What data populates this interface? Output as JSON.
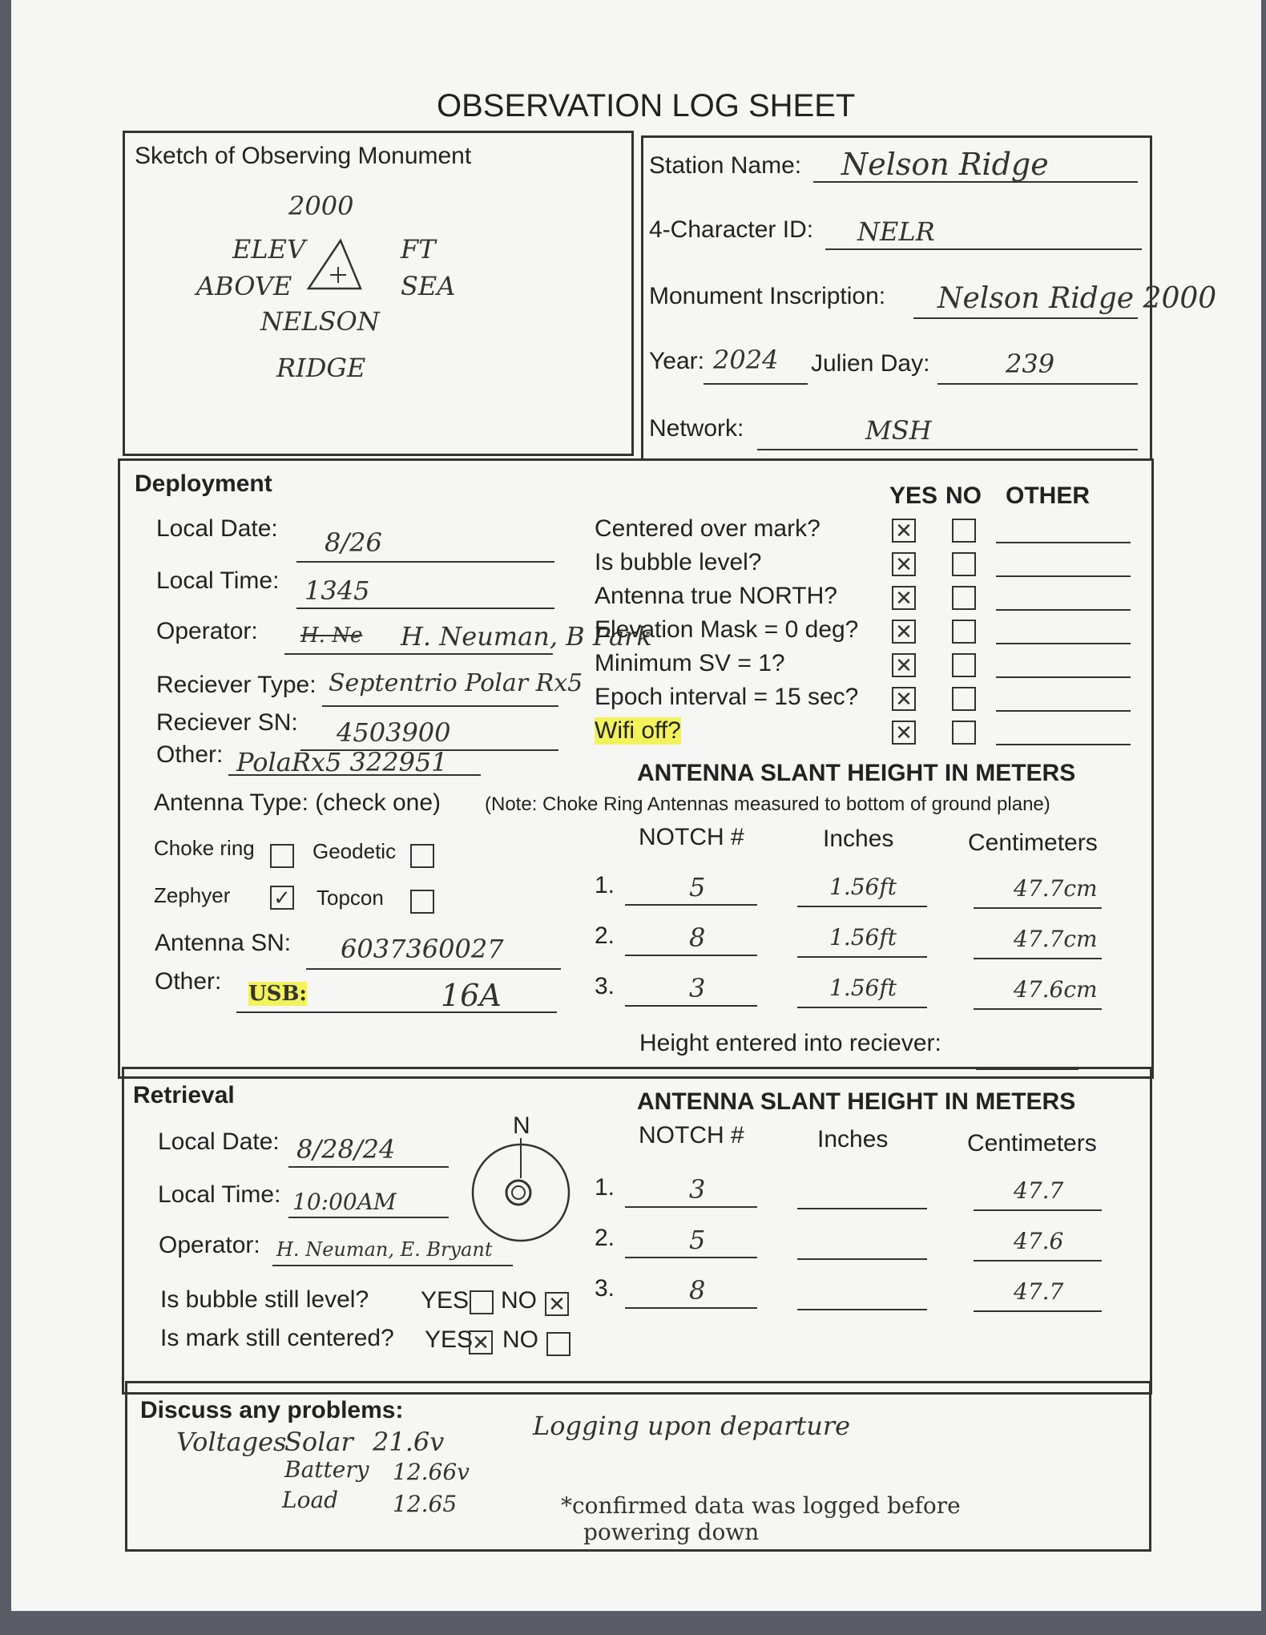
{
  "title": "OBSERVATION LOG SHEET",
  "sketch": {
    "label": "Sketch of Observing Monument",
    "lines": [
      "2000",
      "ELEV",
      "FT",
      "ABOVE",
      "SEA",
      "NELSON",
      "RIDGE"
    ]
  },
  "station": {
    "name_label": "Station Name:",
    "name": "Nelson Ridge",
    "id_label": "4-Character ID:",
    "id": "NELR",
    "inscription_label": "Monument Inscription:",
    "inscription": "Nelson Ridge 2000",
    "year_label": "Year:",
    "year": "2024",
    "julien_label": "Julien Day:",
    "julien": "239",
    "network_label": "Network:",
    "network": "MSH"
  },
  "deployment": {
    "heading": "Deployment",
    "date_label": "Local Date:",
    "date": "8/26",
    "time_label": "Local Time:",
    "time": "1345",
    "operator_label": "Operator:",
    "operator_struck": "H. Ne",
    "operator": "H. Neuman, B Park",
    "rtype_label": "Reciever Type:",
    "rtype": "Septentrio Polar Rx5",
    "rsn_label": "Reciever SN:",
    "rsn": "4503900",
    "other_label": "Other:",
    "other": "PolaRx5 322951",
    "atype_label": "Antenna Type: (check one)",
    "antenna_types": [
      {
        "label": "Choke ring",
        "checked": false
      },
      {
        "label": "Geodetic",
        "checked": false
      },
      {
        "label": "Zephyer",
        "checked": true
      },
      {
        "label": "Topcon",
        "checked": false
      }
    ],
    "asn_label": "Antenna SN:",
    "asn": "6037360027",
    "other2_label": "Other:",
    "other2_prefix": "USB:",
    "other2": "16A",
    "cols": {
      "yes": "YES",
      "no": "NO",
      "other": "OTHER"
    },
    "questions": [
      {
        "q": "Centered over mark?",
        "yes": true
      },
      {
        "q": "Is bubble level?",
        "yes": true
      },
      {
        "q": "Antenna true NORTH?",
        "yes": true
      },
      {
        "q": "Elevation Mask = 0 deg?",
        "yes": true
      },
      {
        "q": "Minimum SV = 1?",
        "yes": true
      },
      {
        "q": "Epoch interval = 15 sec?",
        "yes": true
      },
      {
        "q": "Wifi off?",
        "yes": true
      }
    ],
    "slant_title": "ANTENNA SLANT HEIGHT IN METERS",
    "note": "(Note: Choke Ring Antennas measured to bottom of ground plane)",
    "h_notch": "NOTCH #",
    "h_inches": "Inches",
    "h_cm": "Centimeters",
    "rows": [
      {
        "n": "1.",
        "notch": "5",
        "inches": "1.56ft",
        "cm": "47.7cm"
      },
      {
        "n": "2.",
        "notch": "8",
        "inches": "1.56ft",
        "cm": "47.7cm"
      },
      {
        "n": "3.",
        "notch": "3",
        "inches": "1.56ft",
        "cm": "47.6cm"
      }
    ],
    "height_label": "Height entered into reciever:"
  },
  "retrieval": {
    "heading": "Retrieval",
    "date_label": "Local Date:",
    "date": "8/28/24",
    "time_label": "Local Time:",
    "time": "10:00AM",
    "operator_label": "Operator:",
    "operator": "H. Neuman, E. Bryant",
    "north": "N",
    "bubble_q": "Is bubble still level?",
    "mark_q": "Is mark still centered?",
    "yes": "YES",
    "no": "NO",
    "bubble_answer": "NO",
    "mark_answer": "YES",
    "slant_title": "ANTENNA SLANT HEIGHT IN METERS",
    "h_notch": "NOTCH #",
    "h_inches": "Inches",
    "h_cm": "Centimeters",
    "rows": [
      {
        "n": "1.",
        "notch": "3",
        "inches": "",
        "cm": "47.7"
      },
      {
        "n": "2.",
        "notch": "5",
        "inches": "",
        "cm": "47.6"
      },
      {
        "n": "3.",
        "notch": "8",
        "inches": "",
        "cm": "47.7"
      }
    ]
  },
  "problems": {
    "label": "Discuss any problems:",
    "voltages": "Voltages",
    "solar": "Solar",
    "solar_v": "21.6v",
    "battery": "Battery",
    "battery_v": "12.66v",
    "load": "Load",
    "load_v": "12.65",
    "note1": "Logging upon departure",
    "note2": "*confirmed data was logged before",
    "note3": "powering down"
  }
}
